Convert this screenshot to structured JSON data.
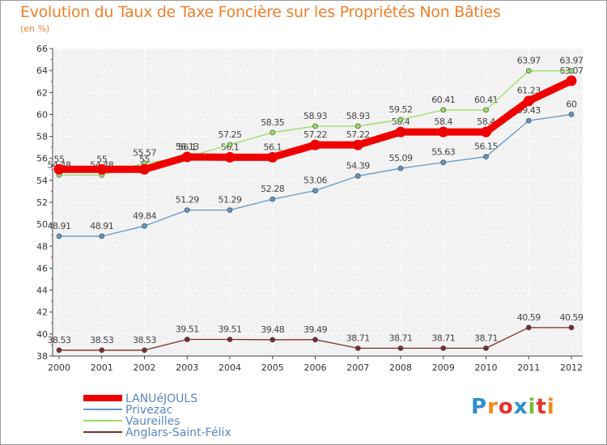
{
  "chart_data": {
    "type": "line",
    "title": "Evolution du Taux de Taxe Foncière sur les Propriétés Non Bâties",
    "ylabel": "(en %)",
    "xlabel": "",
    "x": [
      "2000",
      "2001",
      "2002",
      "2003",
      "2004",
      "2005",
      "2006",
      "2007",
      "2008",
      "2009",
      "2010",
      "2011",
      "2012"
    ],
    "ylim": [
      38,
      66
    ],
    "yticks": [
      38,
      40,
      42,
      44,
      46,
      48,
      50,
      52,
      54,
      56,
      58,
      60,
      62,
      64,
      66
    ],
    "grid": true,
    "legend_position": "bottom-left",
    "series": [
      {
        "name": "LANUéJOULS",
        "color": "#ee0000",
        "values": [
          55,
          55,
          55,
          56.13,
          56.1,
          56.1,
          57.22,
          57.22,
          58.4,
          58.4,
          58.4,
          61.23,
          63.07
        ],
        "labels": [
          "55",
          "55",
          "55",
          "56.13",
          "56.1",
          "56.1",
          "57.22",
          "57.22",
          "58.4",
          "58.4",
          "58.4",
          "61.23",
          "63.07"
        ]
      },
      {
        "name": "Privezac",
        "color": "#5f98c8",
        "values": [
          48.91,
          48.91,
          49.84,
          51.29,
          51.29,
          52.28,
          53.06,
          54.39,
          55.09,
          55.63,
          56.15,
          59.43,
          60
        ],
        "labels": [
          "48.91",
          "48.91",
          "49.84",
          "51.29",
          "51.29",
          "52.28",
          "53.06",
          "54.39",
          "55.09",
          "55.63",
          "56.15",
          "59.43",
          "60"
        ]
      },
      {
        "name": "Vaureilles",
        "color": "#99dd66",
        "values": [
          54.48,
          54.48,
          55.57,
          56.1,
          57.25,
          58.35,
          58.93,
          58.93,
          59.52,
          60.41,
          60.41,
          63.97,
          63.97
        ],
        "labels": [
          "54.48",
          "54.48",
          "55.57",
          "56.1",
          "57.25",
          "58.35",
          "58.93",
          "58.93",
          "59.52",
          "60.41",
          "60.41",
          "63.97",
          "63.97"
        ]
      },
      {
        "name": "Anglars-Saint-Félix",
        "color": "#7b2e2e",
        "values": [
          38.53,
          38.53,
          38.53,
          39.51,
          39.51,
          39.48,
          39.49,
          38.71,
          38.71,
          38.71,
          38.71,
          40.59,
          40.59
        ],
        "labels": [
          "38.53",
          "38.53",
          "38.53",
          "39.51",
          "39.51",
          "39.48",
          "39.49",
          "38.71",
          "38.71",
          "38.71",
          "38.71",
          "40.59",
          "40.59"
        ]
      }
    ]
  },
  "logo": {
    "text": "Proxiti",
    "colors": [
      "#2e8ed0",
      "#f08a1c",
      "#e5312e",
      "#2e8ed0",
      "#79bb2f",
      "#e5312e",
      "#f08a1c"
    ]
  }
}
